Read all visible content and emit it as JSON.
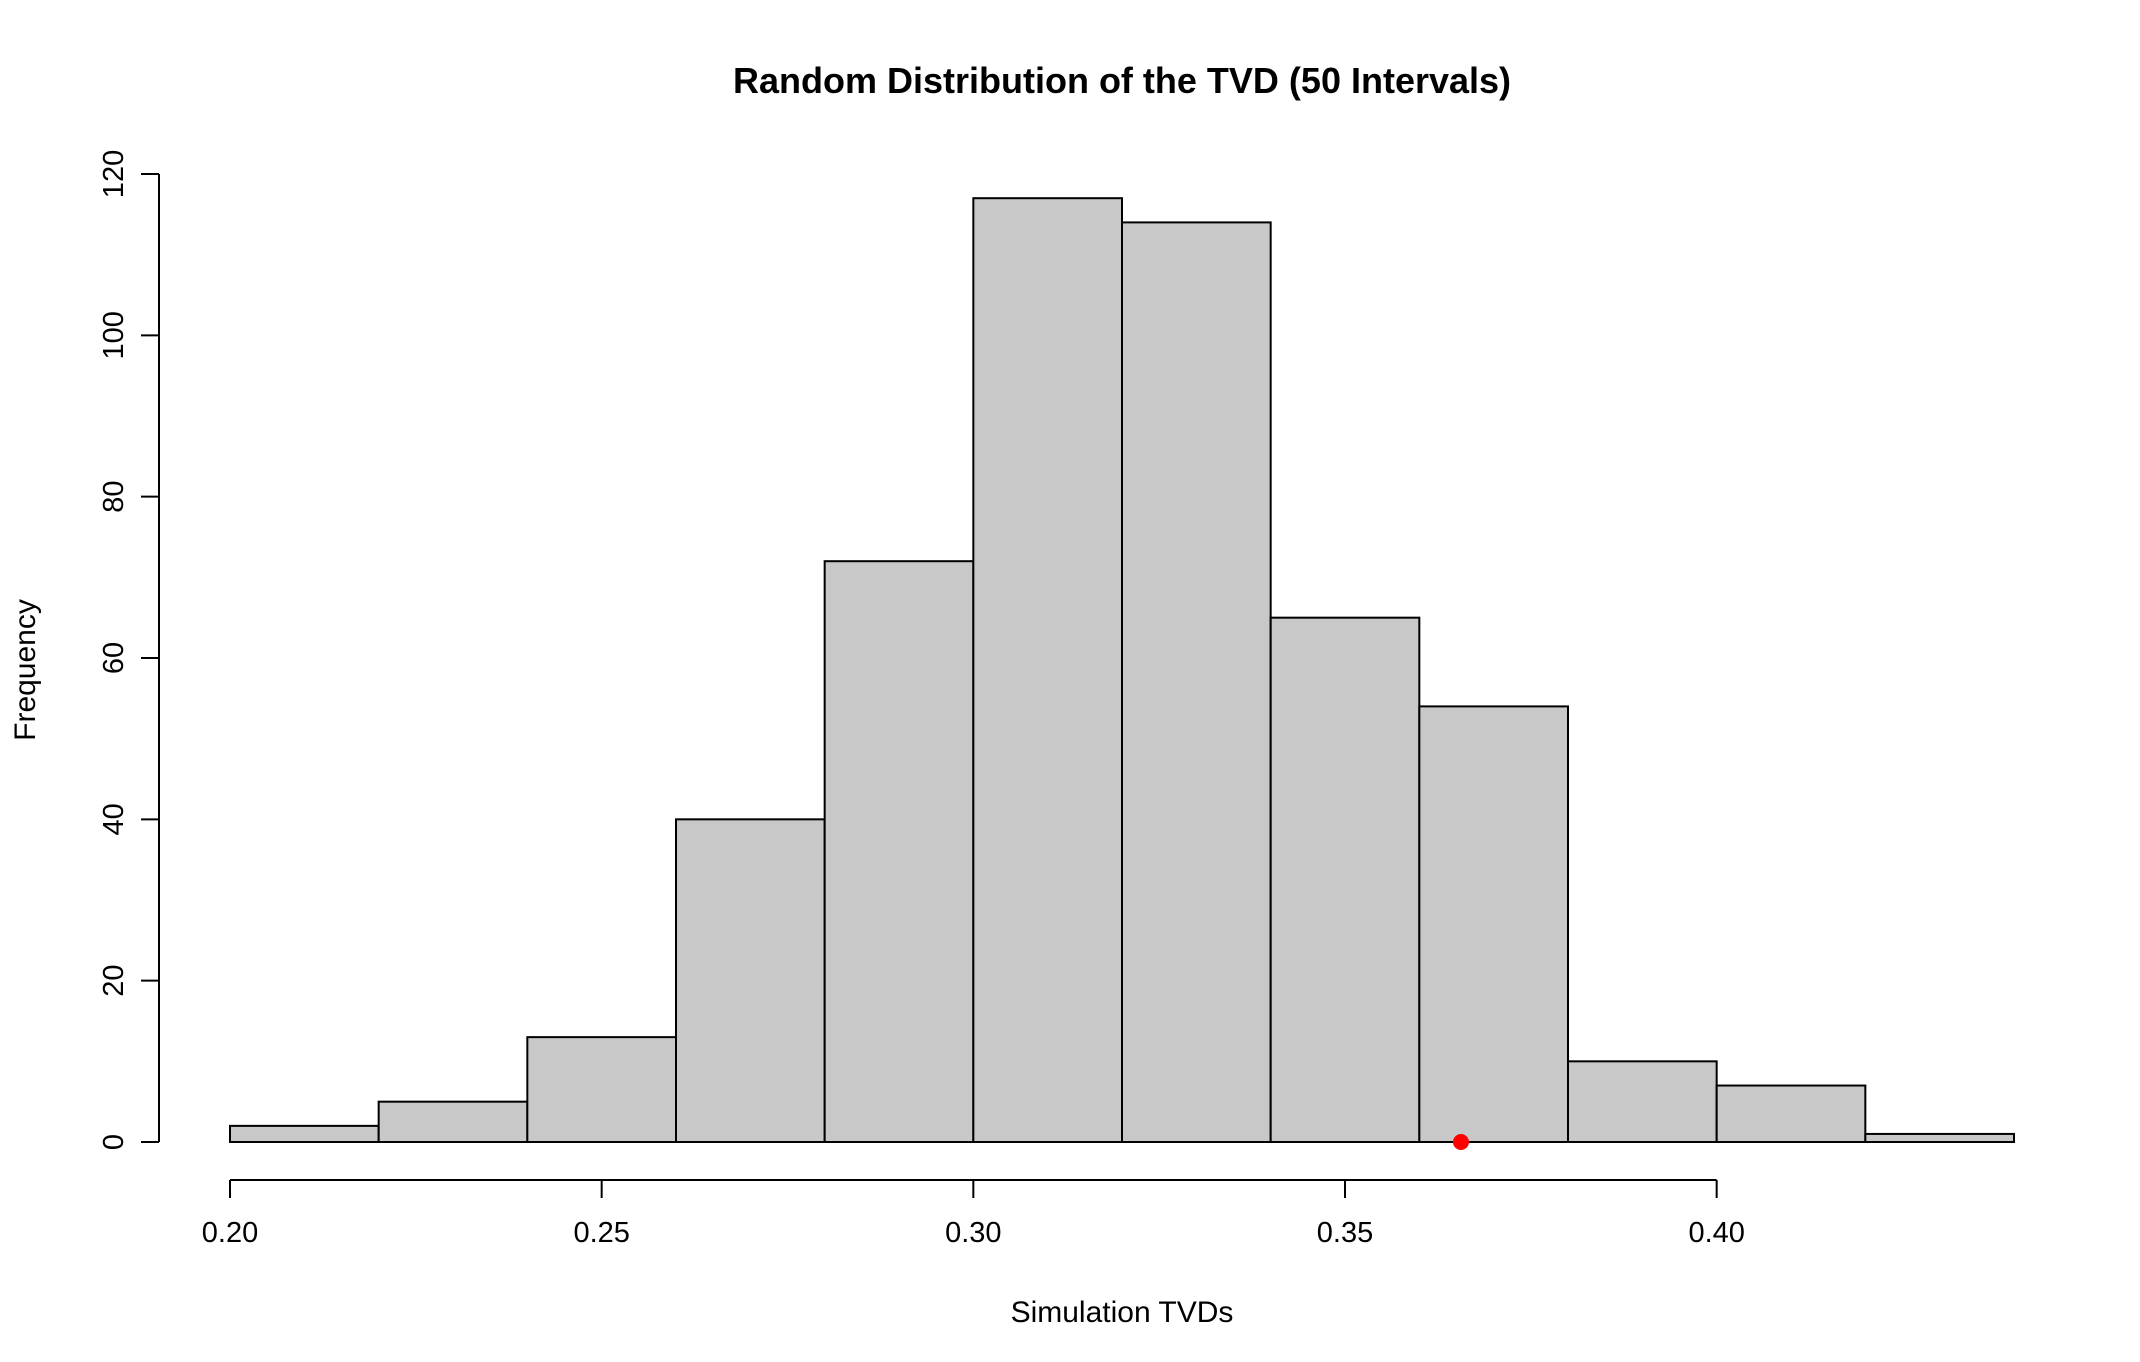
{
  "chart_data": {
    "type": "bar",
    "subtype": "histogram",
    "title": "Random Distribution of the TVD (50 Intervals)",
    "xlabel": "Simulation TVDs",
    "ylabel": "Frequency",
    "bins": [
      {
        "x0": 0.2,
        "x1": 0.22,
        "count": 2
      },
      {
        "x0": 0.22,
        "x1": 0.24,
        "count": 5
      },
      {
        "x0": 0.24,
        "x1": 0.26,
        "count": 13
      },
      {
        "x0": 0.26,
        "x1": 0.28,
        "count": 40
      },
      {
        "x0": 0.28,
        "x1": 0.3,
        "count": 72
      },
      {
        "x0": 0.3,
        "x1": 0.32,
        "count": 117
      },
      {
        "x0": 0.32,
        "x1": 0.34,
        "count": 114
      },
      {
        "x0": 0.34,
        "x1": 0.36,
        "count": 65
      },
      {
        "x0": 0.36,
        "x1": 0.38,
        "count": 54
      },
      {
        "x0": 0.38,
        "x1": 0.4,
        "count": 10
      },
      {
        "x0": 0.4,
        "x1": 0.42,
        "count": 7
      },
      {
        "x0": 0.42,
        "x1": 0.44,
        "count": 1
      }
    ],
    "xlim": [
      0.2,
      0.44
    ],
    "ylim": [
      0,
      120
    ],
    "x_ticks": [
      0.2,
      0.25,
      0.3,
      0.35,
      0.4
    ],
    "x_tick_labels": [
      "0.20",
      "0.25",
      "0.30",
      "0.35",
      "0.40"
    ],
    "y_ticks": [
      0,
      20,
      40,
      60,
      80,
      100,
      120
    ],
    "y_tick_labels": [
      "0",
      "20",
      "40",
      "60",
      "80",
      "100",
      "120"
    ],
    "observed_point": {
      "x": 0.3656,
      "y": 0,
      "color": "#ff0000"
    },
    "bar_fill": "#c8c8c8",
    "bar_stroke": "#000000",
    "grid": false,
    "legend": "none"
  }
}
